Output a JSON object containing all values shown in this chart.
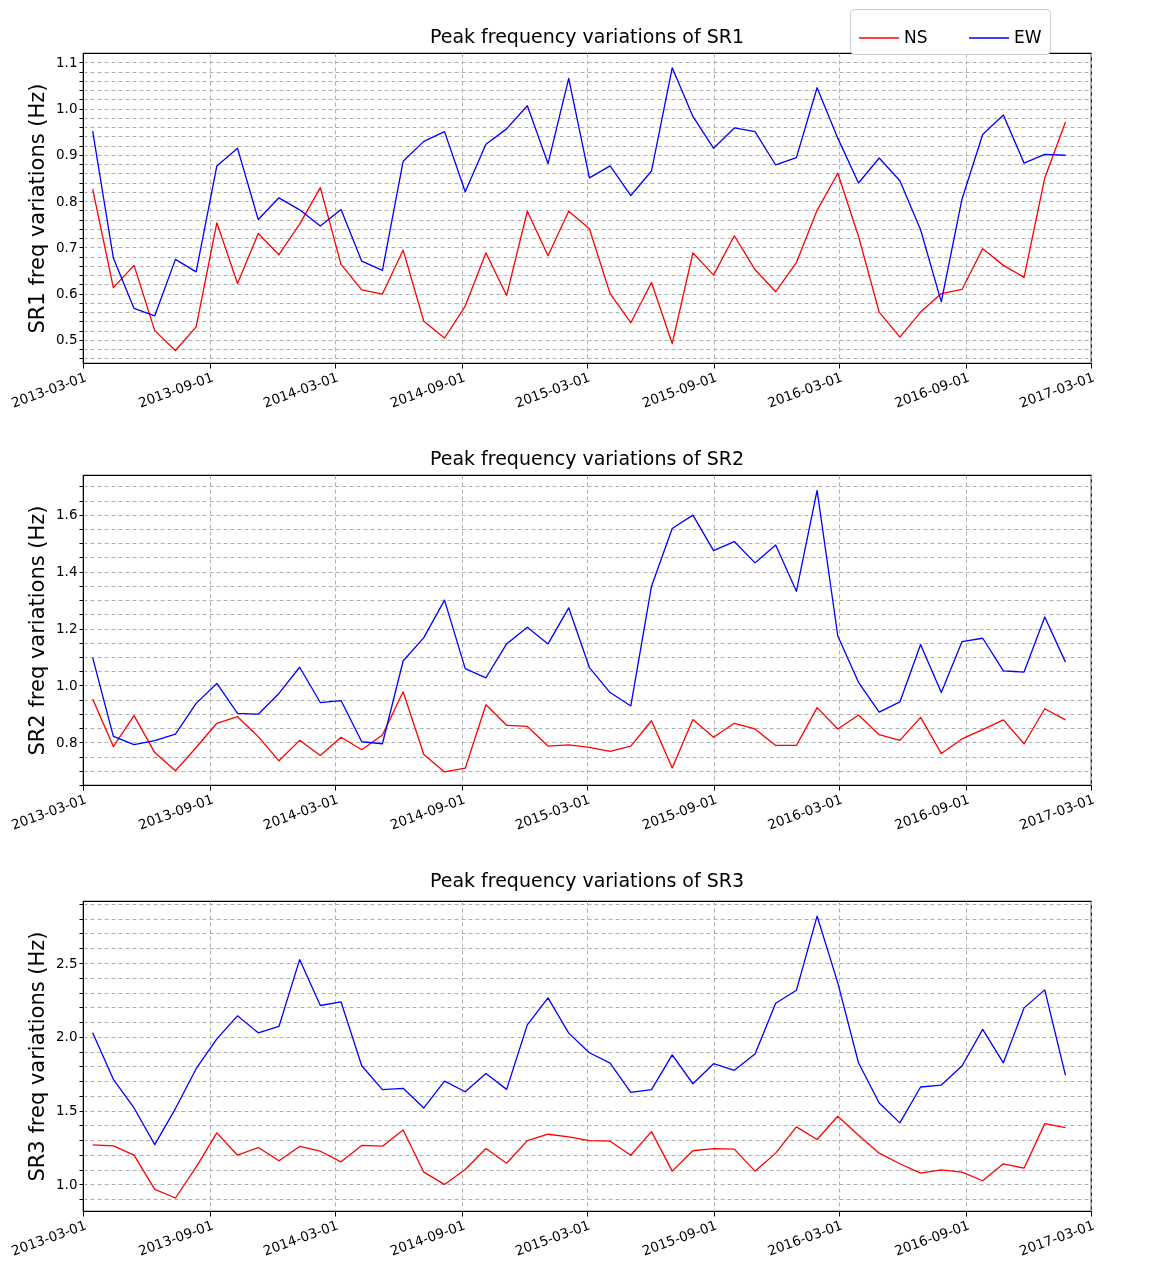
{
  "chart_data": [
    {
      "type": "line",
      "title": "Peak frequency variations of SR1",
      "ylabel": "SR1 freq variations (Hz)",
      "x": [
        "2013-03-15",
        "2013-04-14",
        "2013-05-14",
        "2013-06-13",
        "2013-07-13",
        "2013-08-12",
        "2013-09-11",
        "2013-10-11",
        "2013-11-10",
        "2013-12-10",
        "2014-01-09",
        "2014-02-08",
        "2014-03-10",
        "2014-04-09",
        "2014-05-09",
        "2014-06-08",
        "2014-07-08",
        "2014-08-07",
        "2014-09-06",
        "2014-10-06",
        "2014-11-05",
        "2014-12-05",
        "2015-01-04",
        "2015-02-03",
        "2015-03-05",
        "2015-04-04",
        "2015-05-04",
        "2015-06-03",
        "2015-07-03",
        "2015-08-02",
        "2015-09-01",
        "2015-10-01",
        "2015-10-31",
        "2015-11-30",
        "2015-12-30",
        "2016-01-29",
        "2016-02-28",
        "2016-03-29",
        "2016-04-28",
        "2016-05-28",
        "2016-06-27",
        "2016-07-27",
        "2016-08-26",
        "2016-09-25",
        "2016-10-25",
        "2016-11-24",
        "2016-12-24",
        "2017-01-23"
      ],
      "series": [
        {
          "name": "NS",
          "color": "#ff0000",
          "values": [
            0.826,
            0.613,
            0.661,
            0.52,
            0.477,
            0.528,
            0.753,
            0.622,
            0.73,
            0.684,
            0.75,
            0.829,
            0.663,
            0.608,
            0.599,
            0.694,
            0.54,
            0.504,
            0.573,
            0.688,
            0.596,
            0.778,
            0.682,
            0.778,
            0.74,
            0.6,
            0.537,
            0.624,
            0.492,
            0.688,
            0.64,
            0.725,
            0.652,
            0.604,
            0.667,
            0.78,
            0.86,
            0.724,
            0.56,
            0.506,
            0.56,
            0.6,
            0.609,
            0.697,
            0.661,
            0.635,
            0.85,
            0.971
          ]
        },
        {
          "name": "EW",
          "color": "#0000ff",
          "values": [
            0.951,
            0.677,
            0.568,
            0.552,
            0.674,
            0.647,
            0.876,
            0.914,
            0.76,
            0.807,
            0.781,
            0.746,
            0.782,
            0.67,
            0.65,
            0.886,
            0.929,
            0.95,
            0.82,
            0.923,
            0.956,
            1.006,
            0.881,
            1.065,
            0.85,
            0.876,
            0.812,
            0.865,
            1.088,
            0.983,
            0.914,
            0.958,
            0.95,
            0.878,
            0.894,
            1.045,
            0.936,
            0.839,
            0.893,
            0.844,
            0.738,
            0.582,
            0.804,
            0.944,
            0.986,
            0.882,
            0.901,
            0.899
          ]
        }
      ],
      "xlim": [
        "2013-03-01",
        "2017-03-01"
      ],
      "xticks": [
        "2013-03-01",
        "2013-09-01",
        "2014-03-01",
        "2014-09-01",
        "2015-03-01",
        "2015-09-01",
        "2016-03-01",
        "2016-09-01",
        "2017-03-01"
      ],
      "ylim": [
        0.45,
        1.12
      ],
      "yticks": [
        {
          "value": 0.46,
          "label": null
        },
        {
          "value": 0.48,
          "label": null
        },
        {
          "value": 0.5,
          "label": "0.5"
        },
        {
          "value": 0.52,
          "label": null
        },
        {
          "value": 0.54,
          "label": null
        },
        {
          "value": 0.56,
          "label": null
        },
        {
          "value": 0.58,
          "label": null
        },
        {
          "value": 0.6,
          "label": "0.6"
        },
        {
          "value": 0.62,
          "label": null
        },
        {
          "value": 0.64,
          "label": null
        },
        {
          "value": 0.66,
          "label": null
        },
        {
          "value": 0.68,
          "label": null
        },
        {
          "value": 0.7,
          "label": "0.7"
        },
        {
          "value": 0.72,
          "label": null
        },
        {
          "value": 0.74,
          "label": null
        },
        {
          "value": 0.76,
          "label": null
        },
        {
          "value": 0.78,
          "label": null
        },
        {
          "value": 0.8,
          "label": "0.8"
        },
        {
          "value": 0.82,
          "label": null
        },
        {
          "value": 0.84,
          "label": null
        },
        {
          "value": 0.86,
          "label": null
        },
        {
          "value": 0.88,
          "label": null
        },
        {
          "value": 0.9,
          "label": "0.9"
        },
        {
          "value": 0.92,
          "label": null
        },
        {
          "value": 0.94,
          "label": null
        },
        {
          "value": 0.96,
          "label": null
        },
        {
          "value": 0.98,
          "label": null
        },
        {
          "value": 1,
          "label": "1.0"
        },
        {
          "value": 1.02,
          "label": null
        },
        {
          "value": 1.04,
          "label": null
        },
        {
          "value": 1.06,
          "label": null
        },
        {
          "value": 1.08,
          "label": null
        },
        {
          "value": 1.1,
          "label": "1.1"
        }
      ],
      "grid": true,
      "legend": "top right"
    },
    {
      "type": "line",
      "title": "Peak frequency variations of SR2",
      "ylabel": "SR2 freq variations (Hz)",
      "x": [
        "2013-03-15",
        "2013-04-14",
        "2013-05-14",
        "2013-06-13",
        "2013-07-13",
        "2013-08-12",
        "2013-09-11",
        "2013-10-11",
        "2013-11-10",
        "2013-12-10",
        "2014-01-09",
        "2014-02-08",
        "2014-03-10",
        "2014-04-09",
        "2014-05-09",
        "2014-06-08",
        "2014-07-08",
        "2014-08-07",
        "2014-09-06",
        "2014-10-06",
        "2014-11-05",
        "2014-12-05",
        "2015-01-04",
        "2015-02-03",
        "2015-03-05",
        "2015-04-04",
        "2015-05-04",
        "2015-06-03",
        "2015-07-03",
        "2015-08-02",
        "2015-09-01",
        "2015-10-01",
        "2015-10-31",
        "2015-11-30",
        "2015-12-30",
        "2016-01-29",
        "2016-02-28",
        "2016-03-29",
        "2016-04-28",
        "2016-05-28",
        "2016-06-27",
        "2016-07-27",
        "2016-08-26",
        "2016-09-25",
        "2016-10-25",
        "2016-11-24",
        "2016-12-24",
        "2017-01-23"
      ],
      "series": [
        {
          "color": "#ff0000",
          "values": [
            0.952,
            0.785,
            0.894,
            0.764,
            0.7,
            0.782,
            0.867,
            0.89,
            0.82,
            0.735,
            0.807,
            0.754,
            0.818,
            0.774,
            0.826,
            0.978,
            0.757,
            0.696,
            0.709,
            0.932,
            0.86,
            0.856,
            0.787,
            0.791,
            0.782,
            0.768,
            0.787,
            0.876,
            0.71,
            0.88,
            0.818,
            0.867,
            0.847,
            0.789,
            0.789,
            0.922,
            0.847,
            0.896,
            0.827,
            0.807,
            0.888,
            0.761,
            0.812,
            0.845,
            0.879,
            0.795,
            0.918,
            0.879
          ]
        },
        {
          "color": "#0000ff",
          "values": [
            1.098,
            0.821,
            0.792,
            0.806,
            0.829,
            0.937,
            1.007,
            0.902,
            0.899,
            0.972,
            1.064,
            0.94,
            0.947,
            0.802,
            0.795,
            1.086,
            1.168,
            1.3,
            1.059,
            1.027,
            1.146,
            1.205,
            1.146,
            1.273,
            1.063,
            0.975,
            0.928,
            1.349,
            1.552,
            1.599,
            1.474,
            1.506,
            1.431,
            1.494,
            1.331,
            1.686,
            1.174,
            1.011,
            0.906,
            0.942,
            1.144,
            0.975,
            1.154,
            1.166,
            1.051,
            1.047,
            1.241,
            1.082
          ]
        }
      ],
      "xlim": [
        "2013-03-01",
        "2017-03-01"
      ],
      "xticks": [
        "2013-03-01",
        "2013-09-01",
        "2014-03-01",
        "2014-09-01",
        "2015-03-01",
        "2015-09-01",
        "2016-03-01",
        "2016-09-01",
        "2017-03-01"
      ],
      "ylim": [
        0.65,
        1.74
      ],
      "yticks": [
        {
          "value": 0.65,
          "label": null
        },
        {
          "value": 0.7,
          "label": null
        },
        {
          "value": 0.75,
          "label": null
        },
        {
          "value": 0.8,
          "label": "0.8"
        },
        {
          "value": 0.85,
          "label": null
        },
        {
          "value": 0.9,
          "label": null
        },
        {
          "value": 0.95,
          "label": null
        },
        {
          "value": 1,
          "label": "1.0"
        },
        {
          "value": 1.05,
          "label": null
        },
        {
          "value": 1.1,
          "label": null
        },
        {
          "value": 1.15,
          "label": null
        },
        {
          "value": 1.2,
          "label": "1.2"
        },
        {
          "value": 1.25,
          "label": null
        },
        {
          "value": 1.3,
          "label": null
        },
        {
          "value": 1.35,
          "label": null
        },
        {
          "value": 1.4,
          "label": "1.4"
        },
        {
          "value": 1.45,
          "label": null
        },
        {
          "value": 1.5,
          "label": null
        },
        {
          "value": 1.55,
          "label": null
        },
        {
          "value": 1.6,
          "label": "1.6"
        },
        {
          "value": 1.65,
          "label": null
        },
        {
          "value": 1.7,
          "label": null
        }
      ],
      "grid": true
    },
    {
      "type": "line",
      "title": "Peak frequency variations of SR3",
      "ylabel": "SR3 freq variations (Hz)",
      "x": [
        "2013-03-15",
        "2013-04-14",
        "2013-05-14",
        "2013-06-13",
        "2013-07-13",
        "2013-08-12",
        "2013-09-11",
        "2013-10-11",
        "2013-11-10",
        "2013-12-10",
        "2014-01-09",
        "2014-02-08",
        "2014-03-10",
        "2014-04-09",
        "2014-05-09",
        "2014-06-08",
        "2014-07-08",
        "2014-08-07",
        "2014-09-06",
        "2014-10-06",
        "2014-11-05",
        "2014-12-05",
        "2015-01-04",
        "2015-02-03",
        "2015-03-05",
        "2015-04-04",
        "2015-05-04",
        "2015-06-03",
        "2015-07-03",
        "2015-08-02",
        "2015-09-01",
        "2015-10-01",
        "2015-10-31",
        "2015-11-30",
        "2015-12-30",
        "2016-01-29",
        "2016-02-28",
        "2016-03-29",
        "2016-04-28",
        "2016-05-28",
        "2016-06-27",
        "2016-07-27",
        "2016-08-26",
        "2016-09-25",
        "2016-10-25",
        "2016-11-24",
        "2016-12-24",
        "2017-01-23"
      ],
      "series": [
        {
          "color": "#ff0000",
          "values": [
            1.268,
            1.261,
            1.198,
            0.966,
            0.908,
            1.117,
            1.349,
            1.198,
            1.25,
            1.16,
            1.257,
            1.225,
            1.153,
            1.264,
            1.259,
            1.369,
            1.083,
            1.0,
            1.101,
            1.243,
            1.144,
            1.297,
            1.34,
            1.322,
            1.297,
            1.293,
            1.198,
            1.358,
            1.09,
            1.228,
            1.243,
            1.239,
            1.09,
            1.212,
            1.39,
            1.304,
            1.462,
            1.333,
            1.212,
            1.14,
            1.077,
            1.099,
            1.083,
            1.025,
            1.14,
            1.11,
            1.412,
            1.385
          ]
        },
        {
          "color": "#0000ff",
          "values": [
            2.027,
            1.712,
            1.518,
            1.27,
            1.514,
            1.784,
            1.986,
            2.142,
            2.027,
            2.07,
            2.523,
            2.212,
            2.236,
            1.804,
            1.642,
            1.651,
            1.518,
            1.7,
            1.628,
            1.752,
            1.644,
            2.081,
            2.264,
            2.025,
            1.892,
            1.822,
            1.624,
            1.642,
            1.878,
            1.682,
            1.818,
            1.773,
            1.883,
            2.227,
            2.315,
            2.818,
            2.365,
            1.824,
            1.552,
            1.417,
            1.66,
            1.673,
            1.802,
            2.05,
            1.824,
            2.196,
            2.318,
            1.739
          ]
        }
      ],
      "xlim": [
        "2013-03-01",
        "2017-03-01"
      ],
      "xticks": [
        "2013-03-01",
        "2013-09-01",
        "2014-03-01",
        "2014-09-01",
        "2015-03-01",
        "2015-09-01",
        "2016-03-01",
        "2016-09-01",
        "2017-03-01"
      ],
      "ylim": [
        0.82,
        2.92
      ],
      "yticks": [
        {
          "value": 0.9,
          "label": null
        },
        {
          "value": 1,
          "label": "1.0"
        },
        {
          "value": 1.1,
          "label": null
        },
        {
          "value": 1.2,
          "label": null
        },
        {
          "value": 1.3,
          "label": null
        },
        {
          "value": 1.4,
          "label": null
        },
        {
          "value": 1.5,
          "label": "1.5"
        },
        {
          "value": 1.6,
          "label": null
        },
        {
          "value": 1.7,
          "label": null
        },
        {
          "value": 1.8,
          "label": null
        },
        {
          "value": 1.9,
          "label": null
        },
        {
          "value": 2,
          "label": "2.0"
        },
        {
          "value": 2.1,
          "label": null
        },
        {
          "value": 2.2,
          "label": null
        },
        {
          "value": 2.3,
          "label": null
        },
        {
          "value": 2.4,
          "label": null
        },
        {
          "value": 2.5,
          "label": "2.5"
        },
        {
          "value": 2.6,
          "label": null
        },
        {
          "value": 2.7,
          "label": null
        },
        {
          "value": 2.8,
          "label": null
        },
        {
          "value": 2.9,
          "label": null
        }
      ],
      "grid": true
    }
  ]
}
